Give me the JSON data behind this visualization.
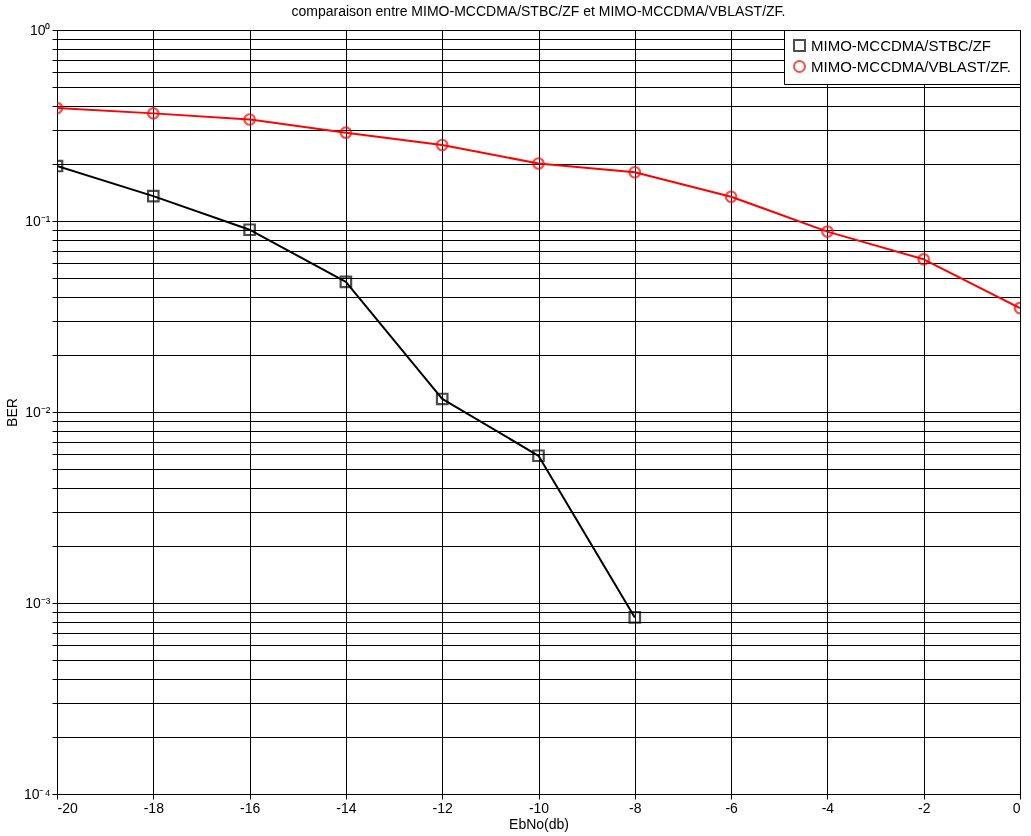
{
  "chart_data": {
    "type": "line",
    "title": "comparaison entre MIMO-MCCDMA/STBC/ZF et MIMO-MCCDMA/VBLAST/ZF.",
    "xlabel": "EbNo(db)",
    "ylabel": "BER",
    "x": [
      -20,
      -18,
      -16,
      -14,
      -12,
      -10,
      -8,
      -6,
      -4,
      -2,
      0
    ],
    "series": [
      {
        "name": "MIMO-MCCDMA/STBC/ZF",
        "color": "#000000",
        "marker": "square",
        "values": [
          0.194,
          0.135,
          0.09,
          0.048,
          0.0117,
          0.0059,
          0.00084,
          null,
          null,
          null,
          null
        ]
      },
      {
        "name": "MIMO-MCCDMA/VBLAST/ZF.",
        "color": "#ff0000",
        "marker": "circle",
        "values": [
          0.39,
          0.366,
          0.34,
          0.29,
          0.25,
          0.2,
          0.18,
          0.134,
          0.088,
          0.063,
          0.035
        ]
      }
    ],
    "log": "y",
    "grid": true,
    "legend": "top right",
    "line_style": "solid",
    "xlim": [
      -20,
      0
    ],
    "xticks": [
      -20,
      -18,
      -16,
      -14,
      -12,
      -10,
      -8,
      -6,
      -4,
      -2,
      0
    ],
    "ylim": [
      0.0001,
      1
    ],
    "yticks": [
      {
        "value": 0.0001,
        "label": "10⁻⁴"
      },
      {
        "value": 0.0002,
        "label": null
      },
      {
        "value": 0.0003,
        "label": null
      },
      {
        "value": 0.0004,
        "label": null
      },
      {
        "value": 0.0005,
        "label": null
      },
      {
        "value": 0.0006,
        "label": null
      },
      {
        "value": 0.0007,
        "label": null
      },
      {
        "value": 0.0008,
        "label": null
      },
      {
        "value": 0.0009,
        "label": null
      },
      {
        "value": 0.001,
        "label": "10⁻³"
      },
      {
        "value": 0.002,
        "label": null
      },
      {
        "value": 0.003,
        "label": null
      },
      {
        "value": 0.004,
        "label": null
      },
      {
        "value": 0.005,
        "label": null
      },
      {
        "value": 0.006,
        "label": null
      },
      {
        "value": 0.007,
        "label": null
      },
      {
        "value": 0.008,
        "label": null
      },
      {
        "value": 0.009,
        "label": null
      },
      {
        "value": 0.01,
        "label": "10⁻²"
      },
      {
        "value": 0.02,
        "label": null
      },
      {
        "value": 0.03,
        "label": null
      },
      {
        "value": 0.04,
        "label": null
      },
      {
        "value": 0.05,
        "label": null
      },
      {
        "value": 0.06,
        "label": null
      },
      {
        "value": 0.07,
        "label": null
      },
      {
        "value": 0.08,
        "label": null
      },
      {
        "value": 0.09,
        "label": null
      },
      {
        "value": 0.1,
        "label": "10⁻¹"
      },
      {
        "value": 0.2,
        "label": null
      },
      {
        "value": 0.3,
        "label": null
      },
      {
        "value": 0.4,
        "label": null
      },
      {
        "value": 0.5,
        "label": null
      },
      {
        "value": 0.6,
        "label": null
      },
      {
        "value": 0.7,
        "label": null
      },
      {
        "value": 0.8,
        "label": null
      },
      {
        "value": 0.9,
        "label": null
      },
      {
        "value": 1,
        "label": "10⁰"
      }
    ]
  }
}
